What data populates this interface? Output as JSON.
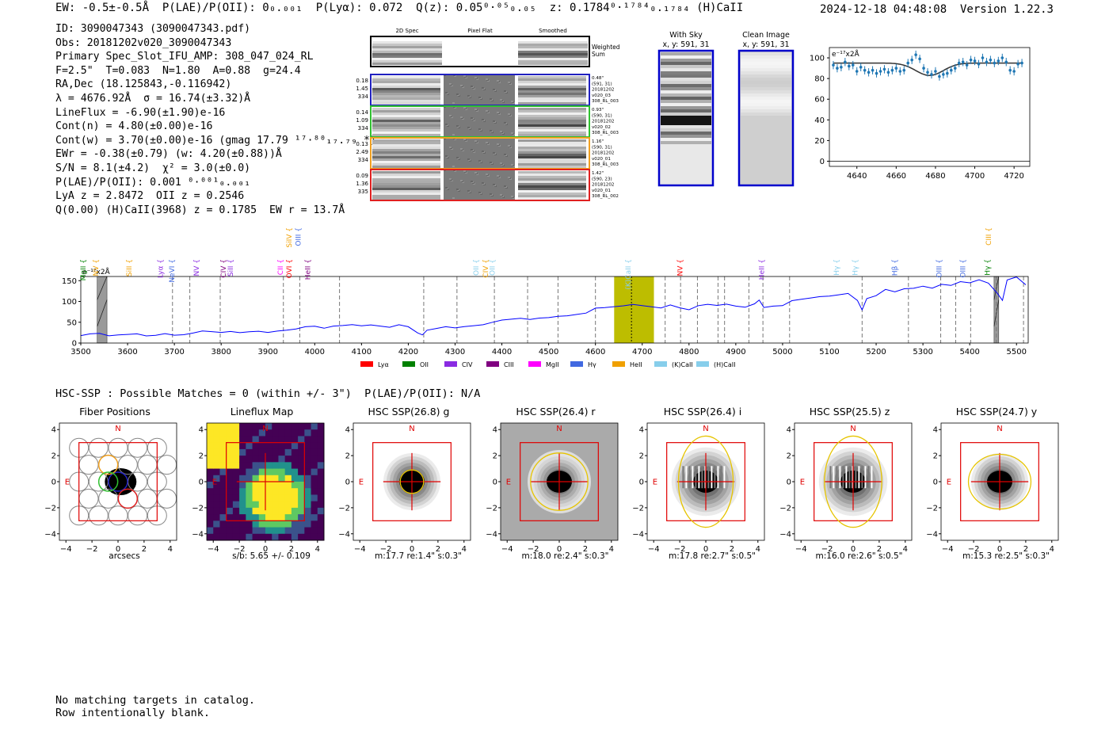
{
  "header": {
    "top_line": "EW: -0.5±-0.5Å  P(LAE)/P(OII): 0₀.₀₀₁  P(Lyα): 0.072  Q(z): 0.05⁰·⁰⁵₀.₀₅  z: 0.1784⁰·¹⁷⁸⁴₀.₁₇₈₄ (H)CaII",
    "timestamp": "2024-12-18 04:48:08  Version 1.22.3"
  },
  "info_lines": [
    "ID: 3090047343 (3090047343.pdf)",
    "Obs: 20181202v020_3090047343",
    "Primary Spec_Slot_IFU_AMP: 308_047_024_RL",
    "F=2.5\"  T=0.083  N=1.80  A=0.88  g=24.4",
    "RA,Dec (18.125843,-0.116942)",
    "λ = 4676.92Å  σ = 16.74(±3.32)Å",
    "LineFlux = -6.90(±1.90)e-16",
    "Cont(n) = 4.80(±0.00)e-16",
    "Cont(w) = 3.70(±0.00)e-16 (gmag 17.79 ¹⁷·⁸⁰₁₇.₇₉ *)",
    "EWr = -0.38(±0.79) (w: 4.20(±0.88))Å",
    "S/N = 8.1(±4.2)  χ² = 3.0(±0.0)",
    "P(LAE)/P(OII): 0.001 ⁰·⁰⁰¹₀.₀₀₁",
    "LyA z = 2.8472  OII z = 0.2546",
    "Q(0.00) (H)CaII(3968) z = 0.1785  EW r = 13.7Å"
  ],
  "cutouts": {
    "columns": [
      "2D Spec",
      "Pixel Flat",
      "Smoothed"
    ],
    "weighted_label": [
      "Weighted",
      "Sum"
    ],
    "rows": [
      {
        "color": "#2020c0",
        "left": [
          "0.18",
          "1.45",
          "334"
        ],
        "right": [
          "0.48\"",
          "(591, 31)",
          "20181202",
          "v020_03",
          "308_RL_003"
        ]
      },
      {
        "color": "#30c030",
        "left": [
          "0.14",
          "1.09",
          "334"
        ],
        "right": [
          "0.93\"",
          "(590, 31)",
          "20181202",
          "v020_02",
          "308_RL_003"
        ]
      },
      {
        "color": "#f0a020",
        "left": [
          "0.13",
          "2.49",
          "334"
        ],
        "right": [
          "1.16\"",
          "(590, 31)",
          "20181202",
          "v020_01",
          "308_RL_003"
        ]
      },
      {
        "color": "#e02020",
        "left": [
          "0.09",
          "1.36",
          "335"
        ],
        "right": [
          "1.42\"",
          "(590, 23)",
          "20181202",
          "v020_01",
          "308_RL_002"
        ]
      }
    ]
  },
  "sky_panels": [
    {
      "title": "With Sky",
      "subtitle": "x, y: 591, 31"
    },
    {
      "title": "Clean Image",
      "subtitle": "x, y: 591, 31"
    }
  ],
  "colors": {
    "accent_blue": "#1f77b4",
    "sky_blue_box": "#0000cc",
    "spec_line": "#0000ff",
    "highlight": "#bdbd00",
    "red": "#e00000"
  },
  "chart_data": [
    {
      "type": "scatter",
      "title": "",
      "unit_label": "e⁻¹⁷x2Å",
      "xlim": [
        4626,
        4728
      ],
      "ylim": [
        -5,
        110
      ],
      "xticks": [
        4640,
        4660,
        4680,
        4700,
        4720
      ],
      "yticks": [
        0,
        20,
        40,
        60,
        80,
        100
      ],
      "x": [
        4628,
        4630,
        4632,
        4634,
        4636,
        4638,
        4640,
        4642,
        4644,
        4646,
        4648,
        4650,
        4652,
        4654,
        4656,
        4658,
        4660,
        4662,
        4664,
        4666,
        4668,
        4670,
        4672,
        4674,
        4676,
        4678,
        4680,
        4682,
        4684,
        4686,
        4688,
        4690,
        4692,
        4694,
        4696,
        4698,
        4700,
        4702,
        4704,
        4706,
        4708,
        4710,
        4712,
        4714,
        4716,
        4718,
        4720,
        4722,
        4724
      ],
      "y": [
        93,
        90,
        91,
        96,
        92,
        93,
        87,
        91,
        88,
        86,
        88,
        85,
        87,
        89,
        86,
        88,
        90,
        87,
        88,
        95,
        98,
        103,
        99,
        90,
        86,
        84,
        87,
        82,
        84,
        85,
        88,
        90,
        95,
        96,
        93,
        98,
        97,
        94,
        100,
        96,
        98,
        95,
        97,
        100,
        96,
        88,
        87,
        94,
        95
      ],
      "fit": {
        "baseline": 95,
        "center": 4677,
        "sigma": 7,
        "depth": 12
      }
    },
    {
      "type": "line",
      "title": "",
      "unit_label": "e⁻¹⁷x2Å",
      "xlim": [
        3500,
        5525
      ],
      "ylim": [
        0,
        160
      ],
      "xticks": [
        3500,
        3600,
        3700,
        3800,
        3900,
        4000,
        4100,
        4200,
        4300,
        4400,
        4500,
        4600,
        4700,
        4800,
        4900,
        5000,
        5100,
        5200,
        5300,
        5400,
        5500
      ],
      "yticks": [
        0,
        50,
        100,
        150
      ],
      "x": [
        3500,
        3520,
        3540,
        3560,
        3580,
        3600,
        3620,
        3640,
        3660,
        3680,
        3700,
        3720,
        3740,
        3760,
        3780,
        3800,
        3820,
        3840,
        3860,
        3880,
        3900,
        3920,
        3940,
        3960,
        3980,
        4000,
        4020,
        4040,
        4060,
        4080,
        4100,
        4120,
        4140,
        4160,
        4180,
        4200,
        4220,
        4230,
        4240,
        4260,
        4280,
        4300,
        4320,
        4340,
        4360,
        4380,
        4400,
        4420,
        4440,
        4460,
        4480,
        4500,
        4520,
        4540,
        4560,
        4580,
        4600,
        4620,
        4640,
        4660,
        4680,
        4700,
        4720,
        4740,
        4760,
        4780,
        4800,
        4820,
        4840,
        4860,
        4880,
        4900,
        4920,
        4940,
        4950,
        4960,
        4980,
        5000,
        5020,
        5040,
        5060,
        5080,
        5100,
        5120,
        5140,
        5160,
        5170,
        5180,
        5200,
        5220,
        5240,
        5260,
        5280,
        5300,
        5320,
        5340,
        5360,
        5380,
        5400,
        5420,
        5440,
        5460,
        5470,
        5480,
        5500,
        5520
      ],
      "y": [
        22,
        18,
        20,
        15,
        18,
        20,
        22,
        18,
        20,
        25,
        22,
        24,
        20,
        26,
        25,
        24,
        27,
        25,
        28,
        30,
        28,
        32,
        35,
        30,
        36,
        38,
        34,
        40,
        42,
        45,
        43,
        46,
        44,
        42,
        40,
        36,
        22,
        18,
        30,
        35,
        40,
        38,
        42,
        45,
        48,
        46,
        52,
        55,
        58,
        56,
        60,
        62,
        66,
        68,
        72,
        76,
        80,
        82,
        85,
        88,
        92,
        90,
        88,
        86,
        94,
        88,
        84,
        86,
        90,
        88,
        92,
        88,
        86,
        95,
        105,
        88,
        92,
        94,
        98,
        102,
        106,
        110,
        112,
        116,
        120,
        104,
        82,
        110,
        118,
        125,
        120,
        128,
        130,
        136,
        132,
        142,
        140,
        150,
        148,
        156,
        140,
        115,
        100,
        150,
        158,
        140
      ],
      "highlight_band": [
        4640,
        4725
      ],
      "marker_line": 4677,
      "masked_regions": [
        [
          3535,
          3556
        ],
        [
          5452,
          5462
        ]
      ],
      "vlines": [
        3696,
        3733,
        3798,
        3933,
        3968,
        4053,
        4233,
        4304,
        4384,
        4455,
        4520,
        4600,
        4749,
        4782,
        4818,
        4862,
        4876,
        4928,
        4958,
        5015,
        5170,
        5269,
        5338,
        5370,
        5402,
        5457,
        5515
      ],
      "lines_labels": [
        {
          "x": 3510,
          "label": "MgII",
          "color": "#008000",
          "level": 1
        },
        {
          "x": 3537,
          "label": "NV",
          "color": "#f0a000",
          "level": 1
        },
        {
          "x": 3608,
          "label": "SiII",
          "color": "#f0a000",
          "level": 1
        },
        {
          "x": 3675,
          "label": "Lyα",
          "color": "#8a2be2",
          "level": 1
        },
        {
          "x": 3700,
          "label": "NeVI",
          "color": "#4169e1",
          "level": 1
        },
        {
          "x": 3752,
          "label": "NV",
          "color": "#8a2be2",
          "level": 1
        },
        {
          "x": 3810,
          "label": "CIV",
          "color": "#800080",
          "level": 1
        },
        {
          "x": 3825,
          "label": "SiII",
          "color": "#8a2be2",
          "level": 1
        },
        {
          "x": 3932,
          "label": "CII",
          "color": "#ff00ff",
          "level": 1
        },
        {
          "x": 3950,
          "label": "SiIV",
          "color": "#f0a000",
          "level": 0
        },
        {
          "x": 3970,
          "label": "OIII",
          "color": "#4169e1",
          "level": 0
        },
        {
          "x": 3950,
          "label": "OVI",
          "color": "#ff0000",
          "level": 1
        },
        {
          "x": 3990,
          "label": "HeII",
          "color": "#800080",
          "level": 1
        },
        {
          "x": 4350,
          "label": "OII",
          "color": "#87ceeb",
          "level": 1
        },
        {
          "x": 4370,
          "label": "CIV",
          "color": "#f0a000",
          "level": 1
        },
        {
          "x": 4385,
          "label": "OII",
          "color": "#87ceeb",
          "level": 1
        },
        {
          "x": 4675,
          "label": "(K)CaII",
          "color": "#87ceeb",
          "level": 1
        },
        {
          "x": 4786,
          "label": "NV",
          "color": "#ff0000",
          "level": 1
        },
        {
          "x": 4960,
          "label": "HeII",
          "color": "#8a2be2",
          "level": 1
        },
        {
          "x": 5120,
          "label": "Hγ",
          "color": "#87ceeb",
          "level": 1
        },
        {
          "x": 5160,
          "label": "Hγ",
          "color": "#87ceeb",
          "level": 1
        },
        {
          "x": 5245,
          "label": "Hβ",
          "color": "#4169e1",
          "level": 1
        },
        {
          "x": 5340,
          "label": "OIII",
          "color": "#4169e1",
          "level": 1
        },
        {
          "x": 5390,
          "label": "OIII",
          "color": "#4169e1",
          "level": 1
        },
        {
          "x": 5445,
          "label": "CIII",
          "color": "#f0a000",
          "level": 0
        },
        {
          "x": 5443,
          "label": "Hγ",
          "color": "#008000",
          "level": 1
        }
      ],
      "legend": [
        {
          "label": "Lyα",
          "color": "#ff0000"
        },
        {
          "label": "OII",
          "color": "#008000"
        },
        {
          "label": "CIV",
          "color": "#8a2be2"
        },
        {
          "label": "CIII",
          "color": "#800080"
        },
        {
          "label": "MgII",
          "color": "#ff00ff"
        },
        {
          "label": "Hγ",
          "color": "#4169e1"
        },
        {
          "label": "HeII",
          "color": "#f0a000"
        },
        {
          "label": "(K)CaII",
          "color": "#87ceeb"
        },
        {
          "label": "(H)CaII",
          "color": "#87ceeb"
        }
      ]
    }
  ],
  "hsc_header": "HSC-SSP : Possible Matches = 0 (within +/- 3\")  P(LAE)/P(OII): N/A",
  "image_panels": [
    {
      "title": "Fiber Positions",
      "caption": "arcsecs",
      "kind": "fibers"
    },
    {
      "title": "Lineflux Map",
      "caption": "s/b: 5.65 +/- 0.109",
      "kind": "lineflux"
    },
    {
      "title": "HSC SSP(26.8) g",
      "caption": "m:17.7  re:1.4\"  s:0.3\"",
      "kind": "galaxy",
      "ellipse": [
        0.9,
        0.9
      ]
    },
    {
      "title": "HSC SSP(26.4) r",
      "caption": "m:18.0  re:2.4\"  s:0.3\"",
      "kind": "galaxy_gray",
      "ellipse": [
        2.2,
        2.2
      ]
    },
    {
      "title": "HSC SSP(26.4) i",
      "caption": "m:17.8  re:2.7\"  s:0.5\"",
      "kind": "galaxy_sat",
      "ellipse": [
        2.1,
        3.5
      ]
    },
    {
      "title": "HSC SSP(25.5) z",
      "caption": "m:16.0  re:2.6\"  s:0.5\"",
      "kind": "galaxy_sat2",
      "ellipse": [
        2.2,
        3.5
      ]
    },
    {
      "title": "HSC SSP(24.7) y",
      "caption": "m:15.3  re:2.5\"  s:0.3\"",
      "kind": "galaxy",
      "ellipse": [
        2.4,
        2.1
      ]
    }
  ],
  "compass": {
    "north": "N",
    "east": "E"
  },
  "image_ticks": [
    -4,
    -2,
    0,
    2,
    4
  ],
  "footer_lines": [
    "No matching targets in catalog.",
    "Row intentionally blank."
  ]
}
